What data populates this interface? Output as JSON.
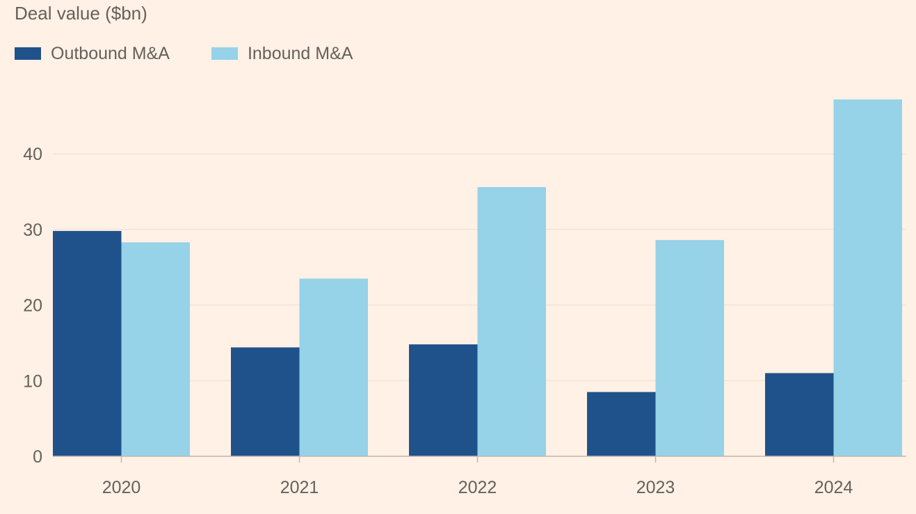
{
  "chart_data": {
    "type": "bar",
    "title": "Deal value ($bn)",
    "xlabel": "",
    "ylabel": "",
    "categories": [
      "2020",
      "2021",
      "2022",
      "2023",
      "2024"
    ],
    "series": [
      {
        "name": "Outbound M&A",
        "values": [
          29.8,
          14.4,
          14.8,
          8.5,
          11.0
        ],
        "color": "#1f528a"
      },
      {
        "name": "Inbound M&A",
        "values": [
          28.3,
          23.5,
          35.6,
          28.6,
          47.2
        ],
        "color": "#96d2e8"
      }
    ],
    "yticks": [
      0,
      10,
      20,
      30,
      40
    ],
    "ylim": [
      0,
      48
    ],
    "grid": true,
    "legend": "top-left"
  },
  "colors": {
    "background": "#fff1e5",
    "gridline": "#e9ddd2",
    "axis": "#c0b6ad",
    "text": "#66605c"
  }
}
